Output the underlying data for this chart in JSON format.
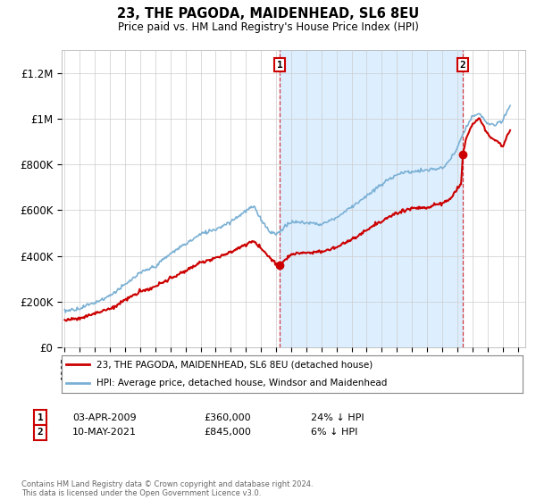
{
  "title": "23, THE PAGODA, MAIDENHEAD, SL6 8EU",
  "subtitle": "Price paid vs. HM Land Registry's House Price Index (HPI)",
  "ylabel_ticks": [
    "£0",
    "£200K",
    "£400K",
    "£600K",
    "£800K",
    "£1M",
    "£1.2M"
  ],
  "ytick_values": [
    0,
    200000,
    400000,
    600000,
    800000,
    1000000,
    1200000
  ],
  "ylim": [
    0,
    1300000
  ],
  "legend_line1": "23, THE PAGODA, MAIDENHEAD, SL6 8EU (detached house)",
  "legend_line2": "HPI: Average price, detached house, Windsor and Maidenhead",
  "annotation1_date": "03-APR-2009",
  "annotation1_price": "£360,000",
  "annotation1_pct": "24% ↓ HPI",
  "annotation2_date": "10-MAY-2021",
  "annotation2_price": "£845,000",
  "annotation2_pct": "6% ↓ HPI",
  "footnote": "Contains HM Land Registry data © Crown copyright and database right 2024.\nThis data is licensed under the Open Government Licence v3.0.",
  "line_color_sale": "#cc0000",
  "line_color_hpi": "#7ab0d4",
  "shade_color": "#ddeeff",
  "background_color": "#ffffff",
  "grid_color": "#cccccc",
  "sale1_x": 2009.25,
  "sale2_x": 2021.37,
  "sale1_y": 360000,
  "sale2_y": 845000,
  "xlim_left": 1994.8,
  "xlim_right": 2025.5
}
